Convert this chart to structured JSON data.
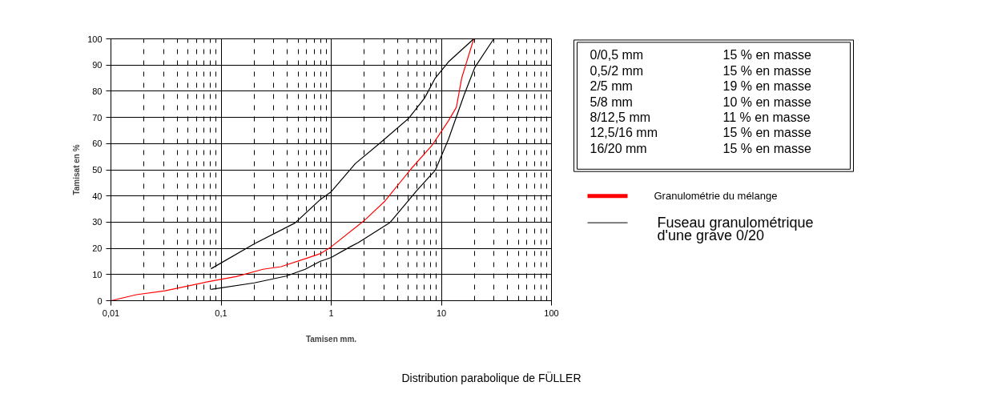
{
  "chart_data": {
    "type": "line",
    "title": "Distribution parabolique de FÜLLER",
    "xlabel": "Tamisen mm.",
    "ylabel": "Tamisat en %",
    "log": "x",
    "grid": true,
    "legend": "right",
    "xlim": [
      0.01,
      100
    ],
    "ylim": [
      0,
      100
    ],
    "xticks": [
      {
        "value": 0.01,
        "label": "0,01"
      },
      {
        "value": 0.1,
        "label": "0,1"
      },
      1,
      10,
      100
    ],
    "yticks": [
      0,
      10,
      20,
      30,
      40,
      50,
      60,
      70,
      80,
      90,
      100
    ],
    "annotations": [
      "0/0,5 mm",
      "15 % en masse",
      "0,5/2 mm",
      "15 % en masse",
      "2/5 mm",
      "19 % en masse",
      "5/8 mm",
      "10 % en masse",
      "8/12,5 mm",
      "11 % en masse",
      "12,5/16 mm",
      "15 % en masse",
      "16/20 mm",
      "15 % en masse"
    ],
    "series": [
      {
        "name": "Granulométrie du mélange",
        "color": "#ff0000",
        "x": [
          0.01,
          0.017,
          0.031,
          0.079,
          0.137,
          0.24,
          0.35,
          0.58,
          0.81,
          1.0,
          1.97,
          3.07,
          5.3,
          8.3,
          11.6,
          13.7,
          15.3,
          19.7
        ],
        "values": [
          0,
          2.3,
          3.8,
          7.4,
          9.2,
          12,
          13,
          16,
          18.1,
          20.6,
          30.4,
          38,
          50.3,
          59.5,
          68.7,
          73.9,
          85,
          100
        ]
      },
      {
        "name": "Fuseau granulométrique d'une grave 0/20",
        "color": "#000000",
        "x": [
          0.081,
          0.2,
          0.47,
          0.79,
          1.0,
          1.66,
          2.74,
          5.06,
          7.05,
          8.8,
          11.6,
          19.7
        ],
        "values": [
          12.2,
          21.7,
          29.7,
          38.5,
          41.6,
          52.4,
          60,
          69.7,
          77.4,
          85,
          91.2,
          100
        ]
      },
      {
        "color": "#000000",
        "x": [
          0.081,
          0.2,
          0.39,
          0.58,
          0.79,
          1.0,
          1.49,
          1.76,
          3.43,
          5.97,
          8.8,
          11.6,
          16.2,
          20.2,
          29.9
        ],
        "values": [
          4.3,
          6.8,
          9.4,
          12,
          15,
          16.5,
          20.6,
          22.2,
          29.9,
          42,
          49.8,
          61.6,
          78.9,
          89.2,
          100
        ]
      }
    ]
  }
}
